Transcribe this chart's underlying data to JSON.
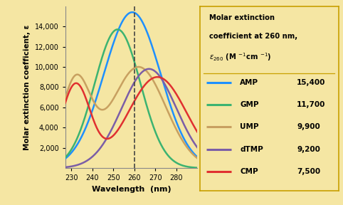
{
  "xlim": [
    227,
    290
  ],
  "ylim": [
    0,
    16000
  ],
  "xticks": [
    230,
    240,
    250,
    260,
    270,
    280
  ],
  "yticks": [
    2000,
    4000,
    6000,
    8000,
    10000,
    12000,
    14000
  ],
  "xlabel": "Wavelength  (nm)",
  "ylabel": "Molar extinction coefficient, ε",
  "background_color": "#f5e6a3",
  "plot_bg_color": "#f5e6a3",
  "dashed_x": 260,
  "legend_entries": [
    {
      "label": "AMP",
      "value": "15,400",
      "color": "#1e90ff"
    },
    {
      "label": "GMP",
      "value": "11,700",
      "color": "#3cb371"
    },
    {
      "label": "UMP",
      "value": "9,900",
      "color": "#c8a060"
    },
    {
      "label": "dTMP",
      "value": "9,200",
      "color": "#7b5ea7"
    },
    {
      "label": "CMP",
      "value": "7,500",
      "color": "#e03030"
    }
  ]
}
